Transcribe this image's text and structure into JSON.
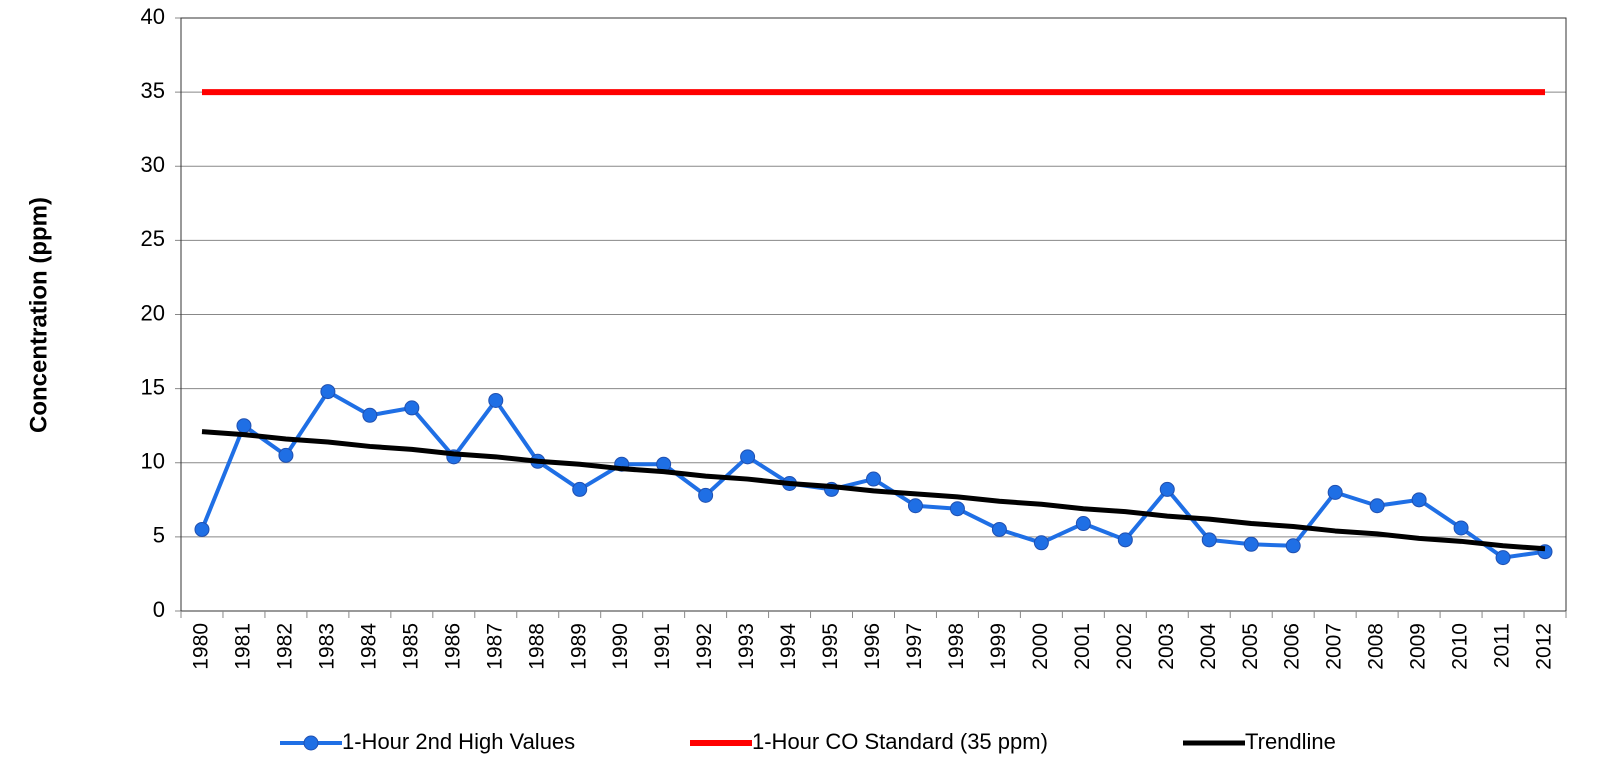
{
  "chart_data": {
    "type": "line",
    "y_label": "Concentration (ppm)",
    "categories": [
      "1980",
      "1981",
      "1982",
      "1983",
      "1984",
      "1985",
      "1986",
      "1987",
      "1988",
      "1989",
      "1990",
      "1991",
      "1992",
      "1993",
      "1994",
      "1995",
      "1996",
      "1997",
      "1998",
      "1999",
      "2000",
      "2001",
      "2002",
      "2003",
      "2004",
      "2005",
      "2006",
      "2007",
      "2008",
      "2009",
      "2010",
      "2011",
      "2012"
    ],
    "series": [
      {
        "name": "1-Hour 2nd High Values",
        "color": "#1f6fe5",
        "marker": "circle",
        "values": [
          5.5,
          12.5,
          10.5,
          14.8,
          13.2,
          13.7,
          10.4,
          14.2,
          10.1,
          8.2,
          9.9,
          9.9,
          7.8,
          10.4,
          8.6,
          8.2,
          8.9,
          7.1,
          6.9,
          5.5,
          4.6,
          5.9,
          4.8,
          8.2,
          4.8,
          4.5,
          4.4,
          8.0,
          7.1,
          7.5,
          5.6,
          3.6,
          4.0
        ]
      },
      {
        "name": "1-Hour CO Standard (35 ppm)",
        "color": "#ff0000",
        "values": [
          35,
          35,
          35,
          35,
          35,
          35,
          35,
          35,
          35,
          35,
          35,
          35,
          35,
          35,
          35,
          35,
          35,
          35,
          35,
          35,
          35,
          35,
          35,
          35,
          35,
          35,
          35,
          35,
          35,
          35,
          35,
          35,
          35
        ]
      },
      {
        "name": "Trendline",
        "color": "#000000",
        "values": [
          12.1,
          11.9,
          11.6,
          11.4,
          11.1,
          10.9,
          10.6,
          10.4,
          10.1,
          9.9,
          9.6,
          9.4,
          9.1,
          8.9,
          8.6,
          8.4,
          8.1,
          7.9,
          7.7,
          7.4,
          7.2,
          6.9,
          6.7,
          6.4,
          6.2,
          5.9,
          5.7,
          5.4,
          5.2,
          4.9,
          4.7,
          4.4,
          4.2
        ]
      }
    ],
    "ylim": [
      0,
      40
    ],
    "yticks": [
      0,
      5,
      10,
      15,
      20,
      25,
      30,
      35,
      40
    ],
    "grid": true,
    "legend": "bottom"
  }
}
